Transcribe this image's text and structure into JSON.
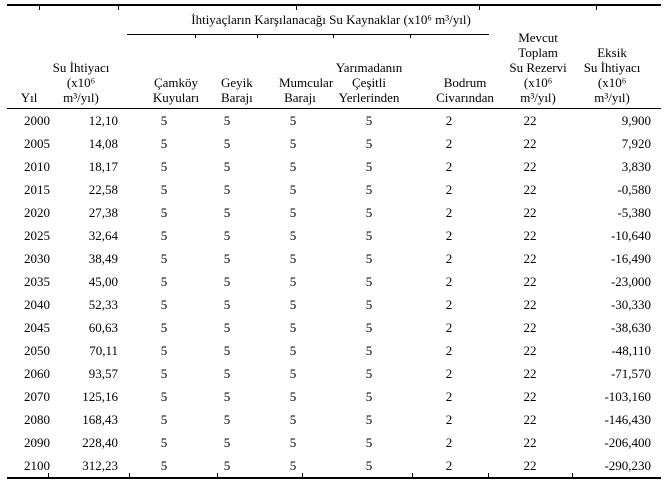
{
  "table": {
    "group_header": "İhtiyaçların Karşılanacağı Su Kaynaklar (x10⁶ m³/yıl)",
    "columns": [
      "Yıl",
      "Su İhtiyacı\n(x10⁶\nm³/yıl)",
      "Çamköy\nKuyuları",
      "Geyik\nBarajı",
      "Mumcular\nBarajı",
      "Yarımadanın\nÇeşitli\nYerlerinden",
      "Bodrum\nCivarından",
      "Mevcut\nToplam\nSu Rezervi\n(x10⁶\nm³/yıl)",
      "Eksik\nSu İhtiyacı\n(x10⁶\nm³/yıl)"
    ],
    "rows": [
      [
        "2000",
        "12,10",
        "5",
        "5",
        "5",
        "5",
        "2",
        "22",
        "9,900"
      ],
      [
        "2005",
        "14,08",
        "5",
        "5",
        "5",
        "5",
        "2",
        "22",
        "7,920"
      ],
      [
        "2010",
        "18,17",
        "5",
        "5",
        "5",
        "5",
        "2",
        "22",
        "3,830"
      ],
      [
        "2015",
        "22,58",
        "5",
        "5",
        "5",
        "5",
        "2",
        "22",
        "-0,580"
      ],
      [
        "2020",
        "27,38",
        "5",
        "5",
        "5",
        "5",
        "2",
        "22",
        "-5,380"
      ],
      [
        "2025",
        "32,64",
        "5",
        "5",
        "5",
        "5",
        "2",
        "22",
        "-10,640"
      ],
      [
        "2030",
        "38,49",
        "5",
        "5",
        "5",
        "5",
        "2",
        "22",
        "-16,490"
      ],
      [
        "2035",
        "45,00",
        "5",
        "5",
        "5",
        "5",
        "2",
        "22",
        "-23,000"
      ],
      [
        "2040",
        "52,33",
        "5",
        "5",
        "5",
        "5",
        "2",
        "22",
        "-30,330"
      ],
      [
        "2045",
        "60,63",
        "5",
        "5",
        "5",
        "5",
        "2",
        "22",
        "-38,630"
      ],
      [
        "2050",
        "70,11",
        "5",
        "5",
        "5",
        "5",
        "2",
        "22",
        "-48,110"
      ],
      [
        "2060",
        "93,57",
        "5",
        "5",
        "5",
        "5",
        "2",
        "22",
        "-71,570"
      ],
      [
        "2070",
        "125,16",
        "5",
        "5",
        "5",
        "5",
        "2",
        "22",
        "-103,160"
      ],
      [
        "2080",
        "168,43",
        "5",
        "5",
        "5",
        "5",
        "2",
        "22",
        "-146,430"
      ],
      [
        "2090",
        "228,40",
        "5",
        "5",
        "5",
        "5",
        "2",
        "22",
        "-206,400"
      ],
      [
        "2100",
        "312,23",
        "5",
        "5",
        "5",
        "5",
        "2",
        "22",
        "-290,230"
      ]
    ]
  },
  "colors": {
    "border": "#000000",
    "text": "#000000",
    "background": "#ffffff"
  }
}
